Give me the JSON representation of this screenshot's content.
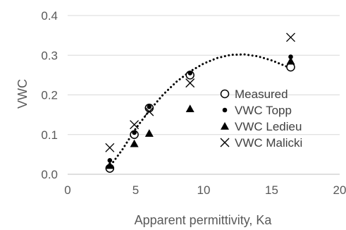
{
  "chart_data": {
    "type": "scatter",
    "xlabel": "Apparent permittivity, Ka",
    "ylabel": "VWC",
    "xlim": [
      0,
      20
    ],
    "ylim": [
      0,
      0.4
    ],
    "x_ticks": [
      "0",
      "5",
      "10",
      "15",
      "20"
    ],
    "y_ticks": [
      "0.0",
      "0.1",
      "0.2",
      "0.3",
      "0.4"
    ],
    "grid": "horizontal",
    "legend_position": "right",
    "series": [
      {
        "name": "Measured",
        "marker": "open-circle",
        "color": "#000000",
        "x": [
          3.1,
          4.9,
          6.0,
          9.0,
          16.4
        ],
        "y": [
          0.015,
          0.1,
          0.167,
          0.25,
          0.27
        ]
      },
      {
        "name": "VWC Topp",
        "marker": "filled-circle",
        "color": "#000000",
        "x": [
          3.1,
          4.9,
          6.0,
          9.0,
          16.4
        ],
        "y": [
          0.035,
          0.105,
          0.17,
          0.255,
          0.296
        ]
      },
      {
        "name": "VWC Ledieu",
        "marker": "filled-triangle",
        "color": "#000000",
        "x": [
          3.1,
          4.9,
          6.0,
          9.0,
          16.4
        ],
        "y": [
          0.022,
          0.077,
          0.103,
          0.165,
          0.285
        ]
      },
      {
        "name": "VWC Malicki",
        "marker": "x",
        "color": "#000000",
        "x": [
          3.1,
          4.9,
          6.0,
          9.0,
          16.4
        ],
        "y": [
          0.067,
          0.125,
          0.158,
          0.23,
          0.345
        ]
      }
    ],
    "trendline": {
      "style": "dotted",
      "color": "#000000",
      "x": [
        3.0,
        4.0,
        5.0,
        6.0,
        7.0,
        8.0,
        9.0,
        10.0,
        11.0,
        12.0,
        13.0,
        14.0,
        15.0,
        16.0,
        16.5
      ],
      "y": [
        0.015,
        0.061,
        0.115,
        0.16,
        0.2,
        0.233,
        0.259,
        0.279,
        0.293,
        0.301,
        0.302,
        0.297,
        0.287,
        0.273,
        0.265
      ]
    }
  }
}
